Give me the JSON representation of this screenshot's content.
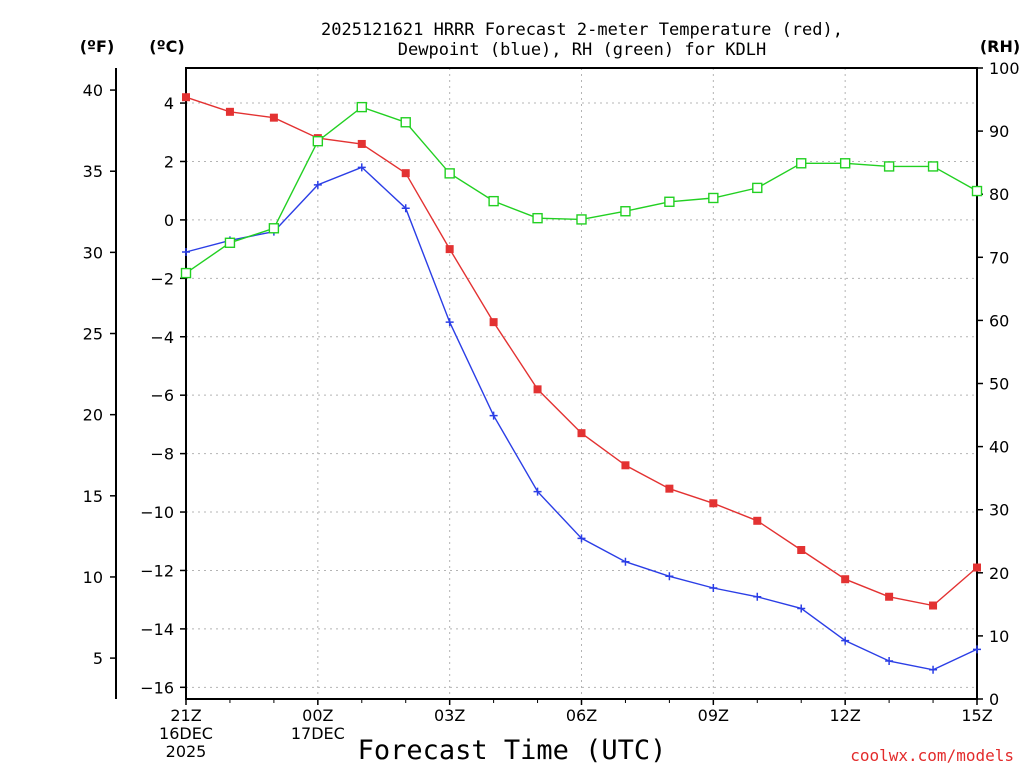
{
  "chart_data": {
    "type": "line",
    "title": [
      "2025121621 HRRR Forecast 2-meter Temperature (red),",
      "Dewpoint (blue), RH (green) for KDLH"
    ],
    "xlabel": "Forecast Time (UTC)",
    "credit": "coolwx.com/models",
    "unit_labels": {
      "fahrenheit": "(ºF)",
      "celsius": "(ºC)",
      "rh": "(RH)"
    },
    "hours": [
      0,
      1,
      2,
      3,
      4,
      5,
      6,
      7,
      8,
      9,
      10,
      11,
      12,
      13,
      14,
      15,
      16,
      17,
      18
    ],
    "x_ticks": [
      {
        "hour": 0,
        "lines": [
          "21Z",
          "16DEC",
          "2025"
        ]
      },
      {
        "hour": 3,
        "lines": [
          "00Z",
          "17DEC"
        ]
      },
      {
        "hour": 6,
        "lines": [
          "03Z"
        ]
      },
      {
        "hour": 9,
        "lines": [
          "06Z"
        ]
      },
      {
        "hour": 12,
        "lines": [
          "09Z"
        ]
      },
      {
        "hour": 15,
        "lines": [
          "12Z"
        ]
      },
      {
        "hour": 18,
        "lines": [
          "15Z"
        ]
      }
    ],
    "celsius_axis": {
      "range": [
        -16.4,
        5.2
      ],
      "ticks": [
        4,
        2,
        0,
        -2,
        -4,
        -6,
        -8,
        -10,
        -12,
        -14,
        -16
      ]
    },
    "fahrenheit_axis": {
      "ticks": [
        40,
        35,
        30,
        25,
        20,
        15,
        10,
        5
      ]
    },
    "rh_axis": {
      "range": [
        0,
        100
      ],
      "ticks": [
        100,
        90,
        80,
        70,
        60,
        50,
        40,
        30,
        20,
        10,
        0
      ]
    },
    "series": [
      {
        "name": "Temperature",
        "unit": "C",
        "color": "#e33232",
        "marker": "filled-square",
        "values": [
          4.2,
          3.7,
          3.5,
          2.8,
          2.6,
          1.6,
          -1.0,
          -3.5,
          -5.8,
          -7.3,
          -8.4,
          -9.2,
          -9.7,
          -10.3,
          -11.3,
          -12.3,
          -12.9,
          -13.2,
          -11.9
        ]
      },
      {
        "name": "Dewpoint",
        "unit": "C",
        "color": "#2b3ee6",
        "marker": "plus",
        "values": [
          -1.1,
          -0.7,
          -0.4,
          1.2,
          1.8,
          0.4,
          -3.5,
          -6.7,
          -9.3,
          -10.9,
          -11.7,
          -12.2,
          -12.6,
          -12.9,
          -13.3,
          -14.4,
          -15.1,
          -15.4,
          -14.7
        ]
      },
      {
        "name": "RH",
        "unit": "%",
        "color": "#22d022",
        "marker": "open-square",
        "values": [
          67.5,
          72.3,
          74.6,
          88.4,
          93.8,
          91.4,
          83.3,
          78.9,
          76.2,
          76.0,
          77.3,
          78.8,
          79.4,
          81.0,
          84.9,
          84.9,
          84.4,
          84.4,
          80.5
        ]
      }
    ]
  }
}
